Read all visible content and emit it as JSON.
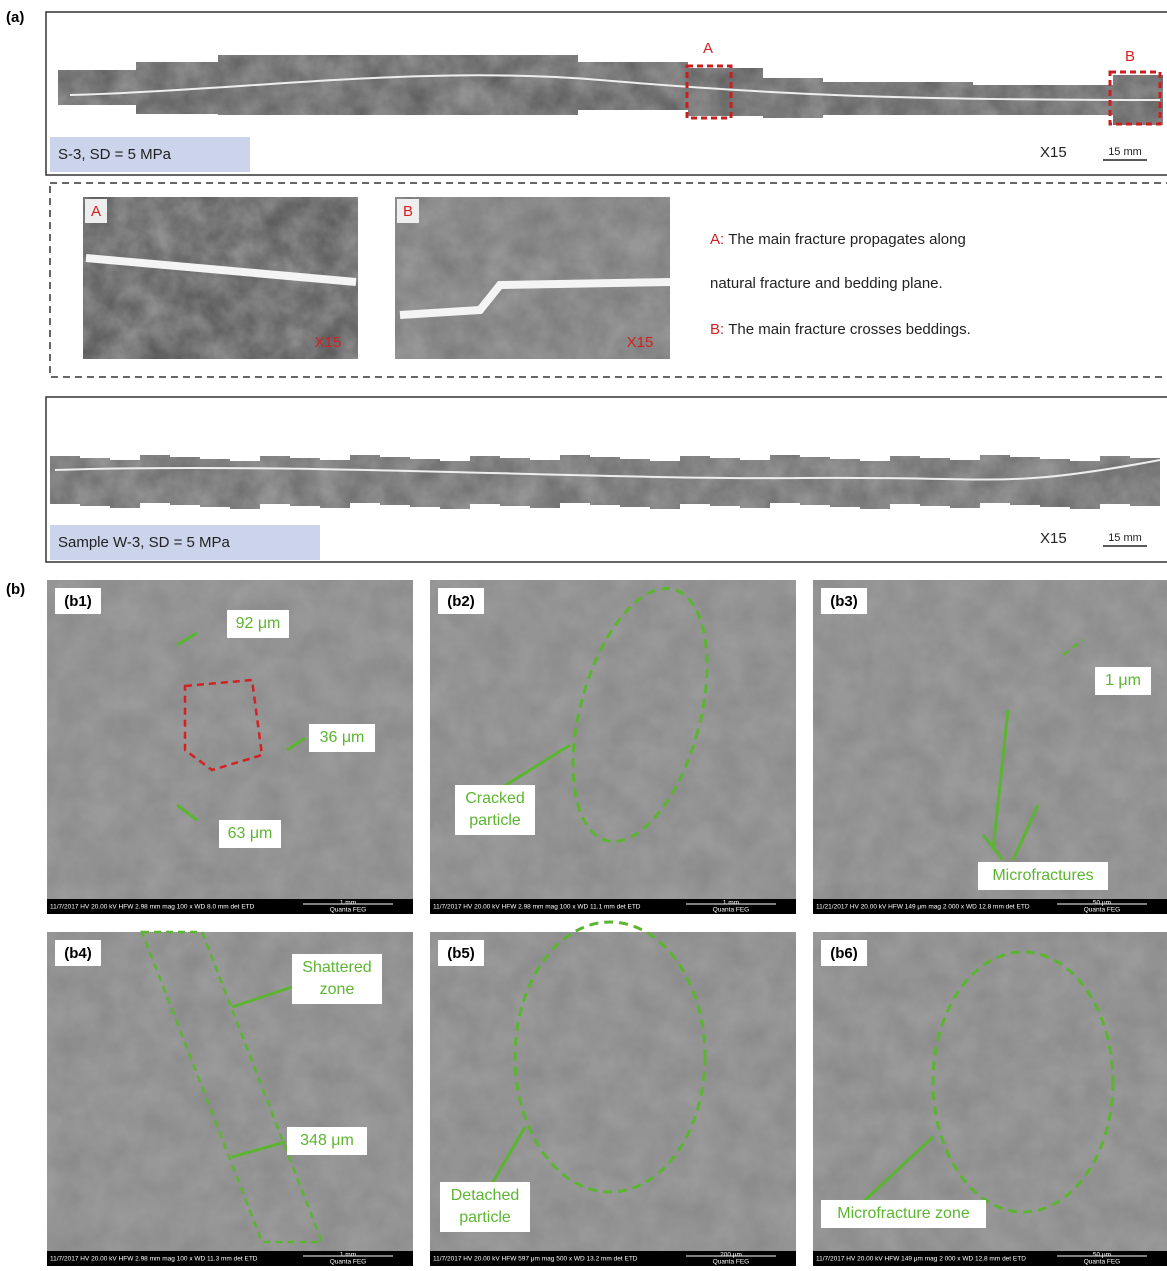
{
  "labels": {
    "a": "(a)",
    "b": "(b)"
  },
  "panel_a": {
    "strip_top": {
      "marker_a": "A",
      "marker_b": "B",
      "caption": "S-3, SD = 5 MPa",
      "magnification": "X15",
      "scale": "15 mm"
    },
    "insets": [
      {
        "label": "A",
        "magnification": "X15"
      },
      {
        "label": "B",
        "magnification": "X15"
      }
    ],
    "legend": [
      {
        "key": "A:",
        "text": "The main fracture propagates along"
      },
      {
        "text": "natural fracture and bedding plane."
      },
      {
        "key": "B:",
        "text": "The main fracture crosses beddings."
      }
    ],
    "strip_bottom": {
      "caption": "Sample W-3, SD = 5 MPa",
      "magnification": "X15",
      "scale": "15 mm"
    }
  },
  "panel_b": [
    {
      "label": "(b1)",
      "annotations": [
        [
          "92 μm"
        ],
        [
          "36 μm"
        ],
        [
          "63 μm"
        ]
      ],
      "info": "11/7/2017 HV 20.00 kV HFW 2.98 mm mag 100 x WD 8.0 mm det ETD",
      "scale": "1 mm",
      "footer": "Quanta FEG"
    },
    {
      "label": "(b2)",
      "annotations": [
        [
          "Cracked",
          "particle"
        ]
      ],
      "info": "11/7/2017 HV 20.00 kV HFW 2.98 mm mag 100 x WD 11.1 mm det ETD",
      "scale": "1 mm",
      "footer": "Quanta FEG"
    },
    {
      "label": "(b3)",
      "annotations": [
        [
          "1 μm"
        ],
        [
          "Microfractures"
        ]
      ],
      "info": "11/21/2017 HV 20.00 kV HFW 149 μm mag 2 000 x WD 12.8 mm det ETD",
      "scale": "50 μm",
      "footer": "Quanta FEG"
    },
    {
      "label": "(b4)",
      "annotations": [
        [
          "Shattered",
          "zone"
        ],
        [
          "348 μm"
        ]
      ],
      "info": "11/7/2017 HV 20.00 kV HFW 2.98 mm mag 100 x WD 11.3 mm det ETD",
      "scale": "1 mm",
      "footer": "Quanta FEG"
    },
    {
      "label": "(b5)",
      "annotations": [
        [
          "Detached",
          "particle"
        ]
      ],
      "info": "11/7/2017 HV 20.00 kV HFW 597 μm mag 500 x WD 13.2 mm det ETD",
      "scale": "200 μm",
      "footer": "Quanta FEG"
    },
    {
      "label": "(b6)",
      "annotations": [
        [
          "Microfracture zone"
        ]
      ],
      "info": "11/7/2017 HV 20.00 kV HFW 149 μm mag 2 000 x WD 12.8 mm det ETD",
      "scale": "50 μm",
      "footer": "Quanta FEG"
    }
  ]
}
